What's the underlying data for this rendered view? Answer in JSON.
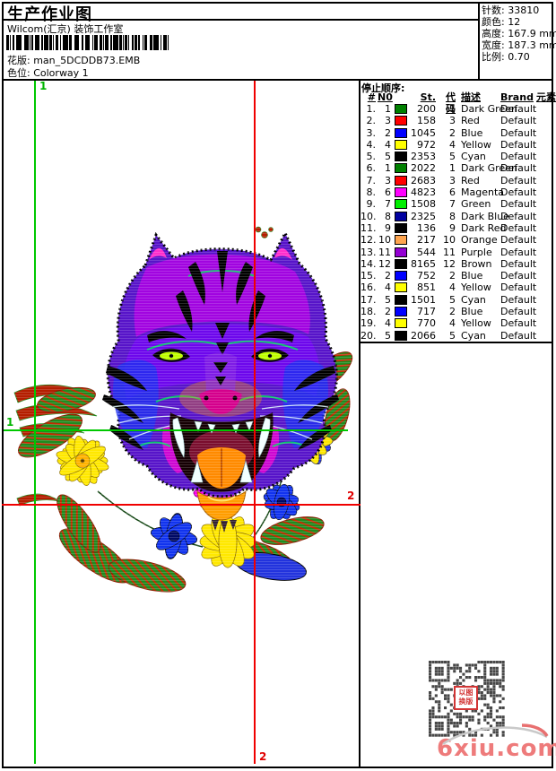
{
  "header": {
    "title": "生产作业图",
    "company": "Wilcom(汇京) 装饰工作室",
    "pattern_label": "花版:",
    "pattern_value": "man_5DCDDB73.EMB",
    "colorway_label": "色位:",
    "colorway_value": "Colorway 1"
  },
  "stats": [
    {
      "label": "针数:",
      "value": "33810"
    },
    {
      "label": "颜色:",
      "value": "12"
    },
    {
      "label": "高度:",
      "value": "167.9 mm"
    },
    {
      "label": "宽度:",
      "value": "187.3 mm"
    },
    {
      "label": "比例:",
      "value": "0.70"
    }
  ],
  "stop_table": {
    "title": "停止顺序:",
    "columns": [
      "#",
      "N0",
      "St.",
      "代码",
      "描述",
      "Brand",
      "元素"
    ],
    "rows": [
      {
        "no": "1.",
        "needle": "1",
        "color": "#008000",
        "st": "200",
        "code": "1",
        "desc": "Dark Green",
        "brand": "Default"
      },
      {
        "no": "2.",
        "needle": "3",
        "color": "#ff0000",
        "st": "158",
        "code": "3",
        "desc": "Red",
        "brand": "Default"
      },
      {
        "no": "3.",
        "needle": "2",
        "color": "#0000ff",
        "st": "1045",
        "code": "2",
        "desc": "Blue",
        "brand": "Default"
      },
      {
        "no": "4.",
        "needle": "4",
        "color": "#ffff00",
        "st": "972",
        "code": "4",
        "desc": "Yellow",
        "brand": "Default"
      },
      {
        "no": "5.",
        "needle": "5",
        "color": "#000000",
        "st": "2353",
        "code": "5",
        "desc": "Cyan",
        "brand": "Default"
      },
      {
        "no": "6.",
        "needle": "1",
        "color": "#008000",
        "st": "2022",
        "code": "1",
        "desc": "Dark Green",
        "brand": "Default"
      },
      {
        "no": "7.",
        "needle": "3",
        "color": "#ff0000",
        "st": "2683",
        "code": "3",
        "desc": "Red",
        "brand": "Default"
      },
      {
        "no": "8.",
        "needle": "6",
        "color": "#ff00ff",
        "st": "4823",
        "code": "6",
        "desc": "Magenta",
        "brand": "Default"
      },
      {
        "no": "9.",
        "needle": "7",
        "color": "#00ee00",
        "st": "1508",
        "code": "7",
        "desc": "Green",
        "brand": "Default"
      },
      {
        "no": "10.",
        "needle": "8",
        "color": "#0000a0",
        "st": "2325",
        "code": "8",
        "desc": "Dark Blue",
        "brand": "Default"
      },
      {
        "no": "11.",
        "needle": "9",
        "color": "#000000",
        "st": "136",
        "code": "9",
        "desc": "Dark Red",
        "brand": "Default"
      },
      {
        "no": "12.",
        "needle": "10",
        "color": "#ffa54f",
        "st": "217",
        "code": "10",
        "desc": "Orange",
        "brand": "Default"
      },
      {
        "no": "13.",
        "needle": "11",
        "color": "#9400d3",
        "st": "544",
        "code": "11",
        "desc": "Purple",
        "brand": "Default"
      },
      {
        "no": "14.",
        "needle": "12",
        "color": "#000000",
        "st": "8165",
        "code": "12",
        "desc": "Brown",
        "brand": "Default"
      },
      {
        "no": "15.",
        "needle": "2",
        "color": "#0000ff",
        "st": "752",
        "code": "2",
        "desc": "Blue",
        "brand": "Default"
      },
      {
        "no": "16.",
        "needle": "4",
        "color": "#ffff00",
        "st": "851",
        "code": "4",
        "desc": "Yellow",
        "brand": "Default"
      },
      {
        "no": "17.",
        "needle": "5",
        "color": "#000000",
        "st": "1501",
        "code": "5",
        "desc": "Cyan",
        "brand": "Default"
      },
      {
        "no": "18.",
        "needle": "2",
        "color": "#0000ff",
        "st": "717",
        "code": "2",
        "desc": "Blue",
        "brand": "Default"
      },
      {
        "no": "19.",
        "needle": "4",
        "color": "#ffff00",
        "st": "770",
        "code": "4",
        "desc": "Yellow",
        "brand": "Default"
      },
      {
        "no": "20.",
        "needle": "5",
        "color": "#000000",
        "st": "2066",
        "code": "5",
        "desc": "Cyan",
        "brand": "Default"
      }
    ]
  },
  "markers": {
    "start_label": "1",
    "end_label": "2",
    "start_color": "#00b400",
    "end_color": "#e00000"
  },
  "watermark": {
    "site": "6xiu.com",
    "stamp_line1": "以图",
    "stamp_line2": "换版"
  }
}
